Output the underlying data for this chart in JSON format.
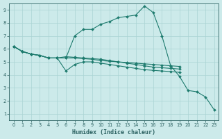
{
  "xlabel": "Humidex (Indice chaleur)",
  "background_color": "#cceaea",
  "grid_color": "#aad4d4",
  "line_color": "#1e7b6e",
  "xlim": [
    -0.5,
    23.5
  ],
  "ylim": [
    0.5,
    9.5
  ],
  "xticks": [
    0,
    1,
    2,
    3,
    4,
    5,
    6,
    7,
    8,
    9,
    10,
    11,
    12,
    13,
    14,
    15,
    16,
    17,
    18,
    19,
    20,
    21,
    22,
    23
  ],
  "yticks": [
    1,
    2,
    3,
    4,
    5,
    6,
    7,
    8,
    9
  ],
  "series": [
    {
      "x": [
        0,
        1,
        2,
        3,
        4,
        5,
        6,
        7,
        8,
        9,
        10,
        11,
        12,
        13,
        14,
        15,
        16,
        17,
        18,
        19,
        20,
        21,
        22,
        23
      ],
      "y": [
        6.2,
        5.8,
        5.6,
        5.5,
        5.3,
        5.3,
        5.3,
        7.0,
        7.5,
        7.5,
        7.9,
        8.1,
        8.4,
        8.5,
        8.6,
        9.3,
        8.8,
        7.0,
        4.7,
        3.9,
        2.8,
        2.7,
        2.3,
        1.3
      ]
    },
    {
      "x": [
        0,
        1,
        2,
        3,
        4,
        5,
        6,
        7,
        8,
        9,
        10,
        11,
        12,
        13,
        14,
        15,
        16,
        17,
        18,
        19
      ],
      "y": [
        6.2,
        5.8,
        5.6,
        5.5,
        5.3,
        5.3,
        4.3,
        4.8,
        5.0,
        5.0,
        4.9,
        4.8,
        4.7,
        4.6,
        4.5,
        4.4,
        4.35,
        4.3,
        4.25,
        4.2
      ]
    },
    {
      "x": [
        0,
        1,
        2,
        3,
        4,
        5,
        6,
        7,
        8,
        9,
        10,
        11,
        12,
        13,
        14,
        15,
        16,
        17,
        18,
        19
      ],
      "y": [
        6.2,
        5.8,
        5.6,
        5.5,
        5.3,
        5.3,
        5.4,
        5.35,
        5.3,
        5.25,
        5.2,
        5.1,
        5.0,
        4.9,
        4.8,
        4.7,
        4.6,
        4.55,
        4.5,
        4.45
      ]
    },
    {
      "x": [
        0,
        1,
        2,
        3,
        4,
        5,
        6,
        7,
        8,
        9,
        10,
        11,
        12,
        13,
        14,
        15,
        16,
        17,
        18,
        19
      ],
      "y": [
        6.2,
        5.8,
        5.6,
        5.5,
        5.3,
        5.3,
        5.3,
        5.3,
        5.25,
        5.2,
        5.1,
        5.05,
        5.0,
        4.95,
        4.9,
        4.85,
        4.8,
        4.75,
        4.7,
        4.65
      ]
    }
  ]
}
